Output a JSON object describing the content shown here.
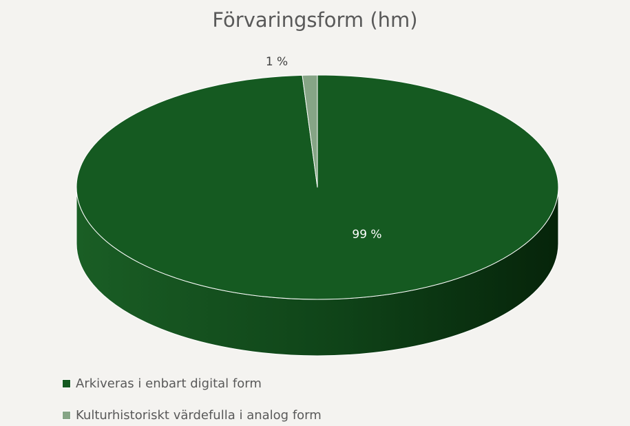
{
  "chart_data": {
    "type": "pie",
    "style": "3d",
    "title": "Förvaringsform (hm)",
    "categories": [
      "Arkiveras i enbart digital form",
      "Kulturhistoriskt värdefulla i analog form"
    ],
    "values": [
      99,
      1
    ],
    "data_labels": [
      "99 %",
      "1 %"
    ],
    "colors": [
      "#155a21",
      "#86a586"
    ],
    "legend_placement": "bottom-left"
  }
}
